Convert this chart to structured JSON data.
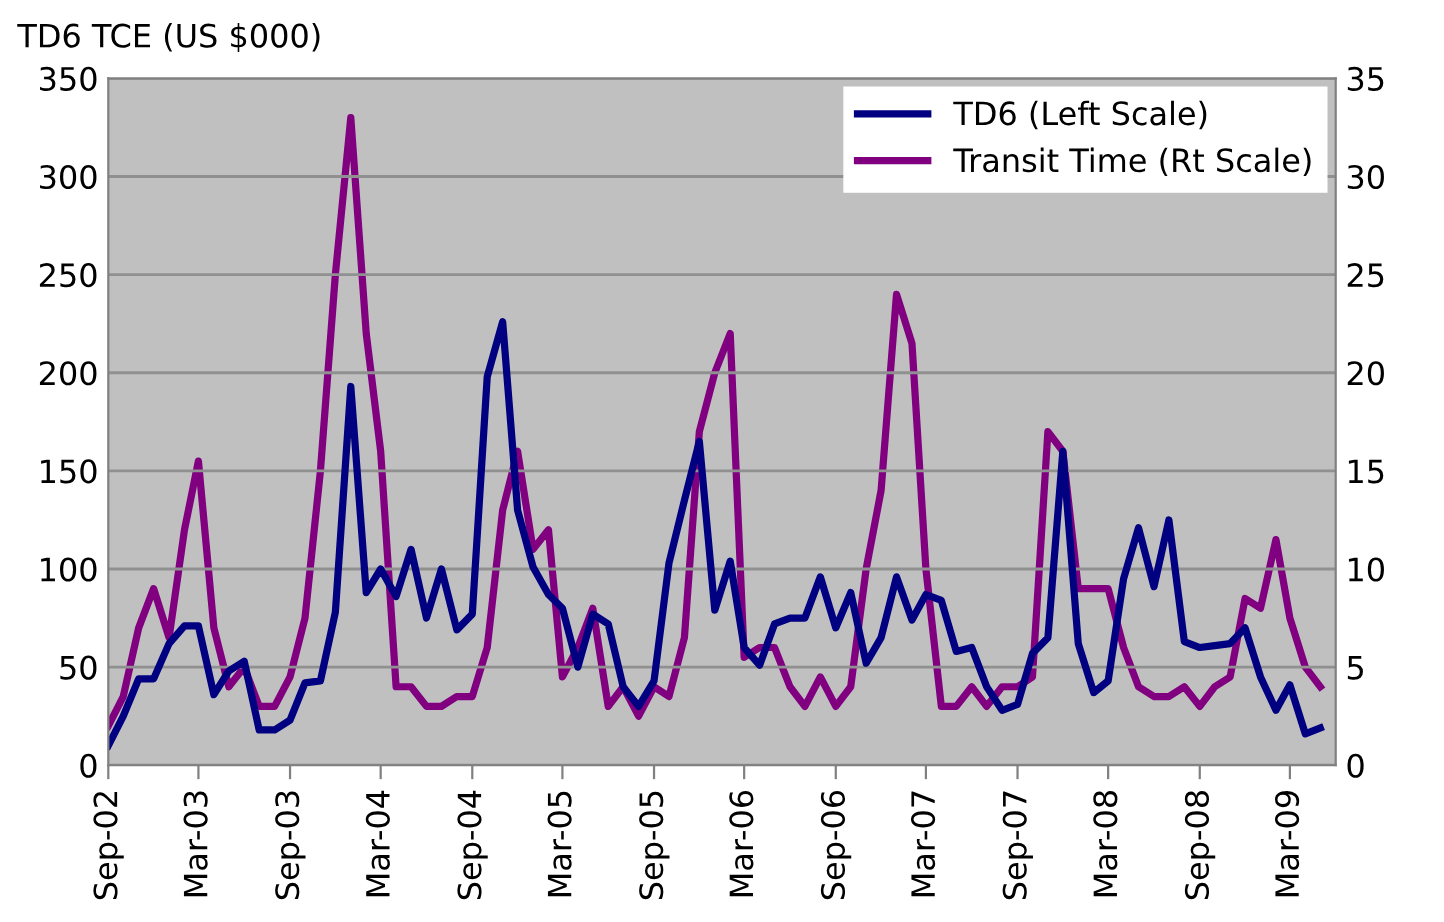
{
  "chart_data": {
    "type": "line",
    "ylabel": "TD6 TCE (US $000)",
    "x": [
      "2002-09",
      "2002-10",
      "2002-11",
      "2002-12",
      "2003-01",
      "2003-02",
      "2003-03",
      "2003-04",
      "2003-05",
      "2003-06",
      "2003-07",
      "2003-08",
      "2003-09",
      "2003-10",
      "2003-11",
      "2003-12",
      "2004-01",
      "2004-02",
      "2004-03",
      "2004-04",
      "2004-05",
      "2004-06",
      "2004-07",
      "2004-08",
      "2004-09",
      "2004-10",
      "2004-11",
      "2004-12",
      "2005-01",
      "2005-02",
      "2005-03",
      "2005-04",
      "2005-05",
      "2005-06",
      "2005-07",
      "2005-08",
      "2005-09",
      "2005-10",
      "2005-11",
      "2005-12",
      "2006-01",
      "2006-02",
      "2006-03",
      "2006-04",
      "2006-05",
      "2006-06",
      "2006-07",
      "2006-08",
      "2006-09",
      "2006-10",
      "2006-11",
      "2006-12",
      "2007-01",
      "2007-02",
      "2007-03",
      "2007-04",
      "2007-05",
      "2007-06",
      "2007-07",
      "2007-08",
      "2007-09",
      "2007-10",
      "2007-11",
      "2007-12",
      "2008-01",
      "2008-02",
      "2008-03",
      "2008-04",
      "2008-05",
      "2008-06",
      "2008-07",
      "2008-08",
      "2008-09",
      "2008-10",
      "2008-11",
      "2008-12",
      "2009-01",
      "2009-02",
      "2009-03",
      "2009-04",
      "2009-05"
    ],
    "series": [
      {
        "name": "TD6 (Left Scale)",
        "color": "#000080",
        "axis": "y",
        "values": [
          10,
          25,
          44,
          44,
          62,
          71,
          71,
          36,
          48,
          53,
          18,
          18,
          23,
          42,
          43,
          78,
          193,
          88,
          100,
          86,
          110,
          75,
          100,
          69,
          77,
          198,
          226,
          130,
          101,
          87,
          80,
          50,
          77,
          72,
          40,
          30,
          43,
          103,
          135,
          165,
          79,
          104,
          60,
          51,
          72,
          75,
          75,
          96,
          70,
          88,
          52,
          65,
          96,
          74,
          87,
          84,
          58,
          60,
          40,
          28,
          31,
          57,
          65,
          160,
          62,
          37,
          43,
          95,
          121,
          91,
          125,
          63,
          60,
          61,
          62,
          70,
          45,
          28,
          41,
          16,
          19
        ]
      },
      {
        "name": "Transit Time (Rt Scale)",
        "color": "#800080",
        "axis": "y2",
        "values": [
          2,
          3.5,
          7,
          9,
          6.5,
          12,
          15.5,
          7,
          4,
          5,
          3,
          3,
          4.5,
          7.5,
          15,
          25,
          33,
          22,
          16,
          4,
          4,
          3,
          3,
          3.5,
          3.5,
          6,
          13,
          16,
          11,
          12,
          4.5,
          6,
          8,
          3,
          4,
          2.5,
          4,
          3.5,
          6.5,
          17,
          20,
          22,
          5.5,
          6,
          6,
          4,
          3,
          4.5,
          3,
          4,
          10,
          14,
          24,
          21.5,
          10,
          3,
          3,
          4,
          3,
          4,
          4,
          4.5,
          17,
          16,
          9,
          9,
          9,
          6,
          4,
          3.5,
          3.5,
          4,
          3,
          4,
          4.5,
          8.5,
          8,
          11.5,
          7.5,
          5,
          4
        ]
      }
    ],
    "xlim": [
      "2002-09",
      "2009-06"
    ],
    "xticks": [
      {
        "value": "2002-09",
        "label": "Sep-02"
      },
      {
        "value": "2003-03",
        "label": "Mar-03"
      },
      {
        "value": "2003-09",
        "label": "Sep-03"
      },
      {
        "value": "2004-03",
        "label": "Mar-04"
      },
      {
        "value": "2004-09",
        "label": "Sep-04"
      },
      {
        "value": "2005-03",
        "label": "Mar-05"
      },
      {
        "value": "2005-09",
        "label": "Sep-05"
      },
      {
        "value": "2006-03",
        "label": "Mar-06"
      },
      {
        "value": "2006-09",
        "label": "Sep-06"
      },
      {
        "value": "2007-03",
        "label": "Mar-07"
      },
      {
        "value": "2007-09",
        "label": "Sep-07"
      },
      {
        "value": "2008-03",
        "label": "Mar-08"
      },
      {
        "value": "2008-09",
        "label": "Sep-08"
      },
      {
        "value": "2009-03",
        "label": "Mar-09"
      }
    ],
    "ylim": [
      0,
      350
    ],
    "yticks": [
      0,
      50,
      100,
      150,
      200,
      250,
      300,
      350
    ],
    "y2lim": [
      0,
      35
    ],
    "y2ticks": [
      0,
      5,
      10,
      15,
      20,
      25,
      30,
      35
    ],
    "grid": "y",
    "legend": "top right",
    "line_style": "solid",
    "marker": "none"
  }
}
